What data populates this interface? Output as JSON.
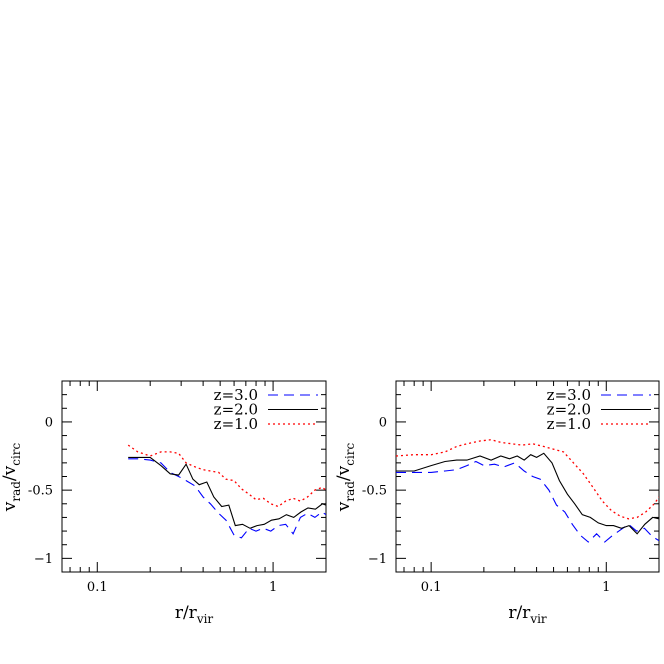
{
  "chart_data": [
    {
      "type": "line",
      "panel": "left",
      "xscale": "log",
      "xlim": [
        0.063,
        2.0
      ],
      "ylim": [
        -1.1,
        0.3
      ],
      "grid": false,
      "legend_placement": "top-right",
      "xlabel": {
        "main": "r/r",
        "sub": "vir"
      },
      "ylabel": {
        "main": "v",
        "sub1": "rad",
        "slash": "/v",
        "sub2": "circ"
      },
      "xticks": [
        {
          "value": 0.1,
          "label": "0.1"
        },
        {
          "value": 1,
          "label": "1"
        }
      ],
      "yticks": [
        {
          "value": 0,
          "label": "0"
        },
        {
          "value": -0.5,
          "label": "-0.5"
        },
        {
          "value": -1,
          "label": "−1"
        }
      ],
      "series": [
        {
          "name": "z=3.0",
          "color": "#0000ff",
          "style": "dashed",
          "x": [
            0.15,
            0.17,
            0.2,
            0.23,
            0.26,
            0.29,
            0.32,
            0.36,
            0.4,
            0.44,
            0.49,
            0.54,
            0.6,
            0.66,
            0.73,
            0.8,
            0.88,
            0.97,
            1.07,
            1.18,
            1.3,
            1.43,
            1.57,
            1.73,
            1.9,
            2.0
          ],
          "y": [
            -0.27,
            -0.27,
            -0.28,
            -0.3,
            -0.37,
            -0.4,
            -0.43,
            -0.47,
            -0.55,
            -0.6,
            -0.67,
            -0.72,
            -0.83,
            -0.85,
            -0.78,
            -0.8,
            -0.78,
            -0.8,
            -0.76,
            -0.75,
            -0.82,
            -0.7,
            -0.67,
            -0.7,
            -0.66,
            -0.68
          ]
        },
        {
          "name": "z=2.0",
          "color": "#000000",
          "style": "solid",
          "x": [
            0.15,
            0.17,
            0.2,
            0.23,
            0.26,
            0.29,
            0.32,
            0.35,
            0.38,
            0.42,
            0.46,
            0.51,
            0.56,
            0.61,
            0.67,
            0.74,
            0.81,
            0.89,
            0.98,
            1.08,
            1.19,
            1.31,
            1.44,
            1.58,
            1.74,
            1.91,
            2.0
          ],
          "y": [
            -0.26,
            -0.26,
            -0.26,
            -0.32,
            -0.38,
            -0.39,
            -0.31,
            -0.42,
            -0.46,
            -0.44,
            -0.55,
            -0.62,
            -0.61,
            -0.76,
            -0.75,
            -0.78,
            -0.76,
            -0.75,
            -0.72,
            -0.71,
            -0.68,
            -0.7,
            -0.66,
            -0.63,
            -0.64,
            -0.6,
            -0.61
          ]
        },
        {
          "name": "z=1.0",
          "color": "#ff0000",
          "style": "dotted",
          "x": [
            0.15,
            0.17,
            0.2,
            0.23,
            0.26,
            0.29,
            0.32,
            0.36,
            0.4,
            0.44,
            0.49,
            0.54,
            0.6,
            0.66,
            0.73,
            0.8,
            0.88,
            0.97,
            1.07,
            1.18,
            1.3,
            1.43,
            1.57,
            1.73,
            1.9,
            2.0
          ],
          "y": [
            -0.17,
            -0.22,
            -0.25,
            -0.22,
            -0.22,
            -0.23,
            -0.3,
            -0.33,
            -0.35,
            -0.36,
            -0.37,
            -0.42,
            -0.43,
            -0.49,
            -0.53,
            -0.57,
            -0.56,
            -0.6,
            -0.62,
            -0.58,
            -0.56,
            -0.58,
            -0.55,
            -0.5,
            -0.48,
            -0.5
          ]
        }
      ]
    },
    {
      "type": "line",
      "panel": "right",
      "xscale": "log",
      "xlim": [
        0.063,
        2.0
      ],
      "ylim": [
        -1.1,
        0.3
      ],
      "grid": false,
      "legend_placement": "top-right",
      "xlabel": {
        "main": "r/r",
        "sub": "vir"
      },
      "ylabel": {
        "main": "v",
        "sub1": "rad",
        "slash": "/v",
        "sub2": "circ"
      },
      "xticks": [
        {
          "value": 0.1,
          "label": "0.1"
        },
        {
          "value": 1,
          "label": "1"
        }
      ],
      "yticks": [
        {
          "value": 0,
          "label": "0"
        },
        {
          "value": -0.5,
          "label": "-0.5"
        },
        {
          "value": -1,
          "label": "−1"
        }
      ],
      "series": [
        {
          "name": "z=3.0",
          "color": "#0000ff",
          "style": "dashed",
          "x": [
            0.063,
            0.08,
            0.1,
            0.12,
            0.14,
            0.16,
            0.18,
            0.2,
            0.23,
            0.26,
            0.3,
            0.34,
            0.38,
            0.42,
            0.47,
            0.52,
            0.58,
            0.64,
            0.71,
            0.79,
            0.88,
            0.98,
            1.09,
            1.21,
            1.34,
            1.49,
            1.65,
            1.83,
            2.0
          ],
          "y": [
            -0.37,
            -0.37,
            -0.37,
            -0.36,
            -0.35,
            -0.32,
            -0.29,
            -0.32,
            -0.31,
            -0.33,
            -0.3,
            -0.36,
            -0.4,
            -0.42,
            -0.5,
            -0.61,
            -0.66,
            -0.75,
            -0.83,
            -0.88,
            -0.82,
            -0.88,
            -0.83,
            -0.79,
            -0.75,
            -0.8,
            -0.78,
            -0.84,
            -0.87
          ]
        },
        {
          "name": "z=2.0",
          "color": "#000000",
          "style": "solid",
          "x": [
            0.063,
            0.08,
            0.1,
            0.12,
            0.14,
            0.16,
            0.19,
            0.22,
            0.25,
            0.28,
            0.31,
            0.34,
            0.37,
            0.4,
            0.44,
            0.49,
            0.54,
            0.6,
            0.66,
            0.73,
            0.81,
            0.9,
            1.0,
            1.1,
            1.22,
            1.35,
            1.5,
            1.66,
            1.84,
            2.0
          ],
          "y": [
            -0.36,
            -0.36,
            -0.32,
            -0.29,
            -0.28,
            -0.28,
            -0.25,
            -0.28,
            -0.25,
            -0.27,
            -0.25,
            -0.28,
            -0.24,
            -0.26,
            -0.23,
            -0.3,
            -0.43,
            -0.53,
            -0.6,
            -0.68,
            -0.7,
            -0.74,
            -0.76,
            -0.76,
            -0.78,
            -0.76,
            -0.82,
            -0.75,
            -0.7,
            -0.71
          ]
        },
        {
          "name": "z=1.0",
          "color": "#ff0000",
          "style": "dotted",
          "x": [
            0.063,
            0.08,
            0.1,
            0.12,
            0.14,
            0.16,
            0.19,
            0.22,
            0.25,
            0.29,
            0.33,
            0.38,
            0.44,
            0.5,
            0.57,
            0.65,
            0.74,
            0.84,
            0.95,
            1.07,
            1.2,
            1.34,
            1.5,
            1.68,
            1.88,
            2.0
          ],
          "y": [
            -0.25,
            -0.24,
            -0.24,
            -0.22,
            -0.18,
            -0.16,
            -0.14,
            -0.13,
            -0.15,
            -0.16,
            -0.17,
            -0.16,
            -0.18,
            -0.2,
            -0.22,
            -0.3,
            -0.38,
            -0.48,
            -0.58,
            -0.65,
            -0.69,
            -0.71,
            -0.7,
            -0.66,
            -0.6,
            -0.55
          ]
        }
      ]
    }
  ]
}
